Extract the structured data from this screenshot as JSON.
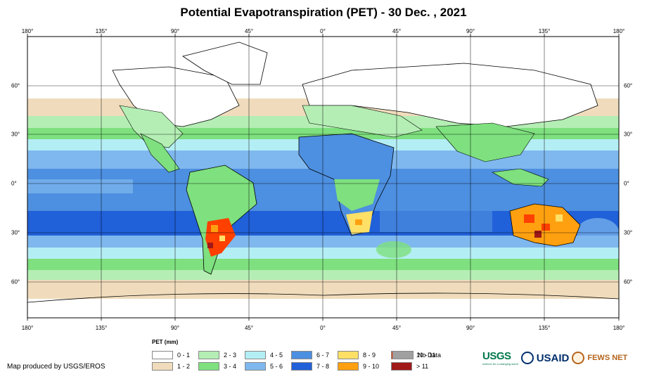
{
  "title": "Potential Evapotranspiration (PET) - 30 Dec. , 2021",
  "lon_labels": [
    "180°",
    "135°",
    "90°",
    "45°",
    "0°",
    "45°",
    "90°",
    "135°",
    "180°"
  ],
  "lat_labels": [
    "60°",
    "30°",
    "0°",
    "30°",
    "60°"
  ],
  "legend": {
    "title": "PET (mm)",
    "items": [
      {
        "label": "0 - 1",
        "color": "#ffffff"
      },
      {
        "label": "1 - 2",
        "color": "#f0dcbc"
      },
      {
        "label": "2 - 3",
        "color": "#b4eeb4"
      },
      {
        "label": "3 - 4",
        "color": "#7ee07e"
      },
      {
        "label": "4 - 5",
        "color": "#b4eef5"
      },
      {
        "label": "5 - 6",
        "color": "#7fb8ee"
      },
      {
        "label": "6 - 7",
        "color": "#4d8fe0"
      },
      {
        "label": "7 - 8",
        "color": "#2060d8"
      },
      {
        "label": "8 - 9",
        "color": "#ffe066"
      },
      {
        "label": "9 - 10",
        "color": "#ffa010"
      },
      {
        "label": "10 - 11",
        "color": "#ff4000"
      },
      {
        "label": "> 11",
        "color": "#a01818"
      },
      {
        "label": "No Data",
        "color": "#a0a0a0"
      }
    ]
  },
  "credit": "Map produced by USGS/EROS",
  "logos": {
    "usgs": "USGS",
    "usgs_tagline": "science for a changing world",
    "usaid": "USAID",
    "fews": "FEWS NET"
  }
}
